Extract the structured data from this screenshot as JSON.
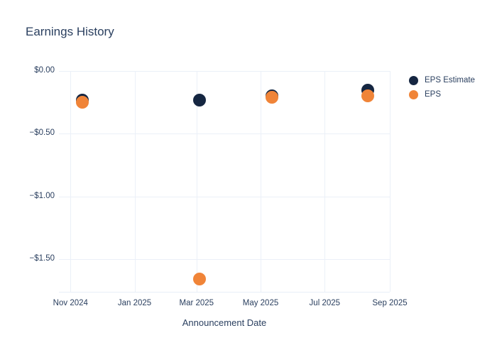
{
  "chart": {
    "title": "Earnings History",
    "xlabel": "Announcement Date"
  },
  "colors": {
    "background": "#ffffff",
    "text": "#2a3f5f",
    "gridline": "#ebf0f8",
    "eps_estimate": "#152641",
    "eps": "#f08438"
  },
  "chart_data": {
    "type": "scatter",
    "title": "Earnings History",
    "xlabel": "Announcement Date",
    "ylabel": "",
    "grid": true,
    "legend_position": "top-right",
    "x_tick_labels": [
      "Nov 2024",
      "Jan 2025",
      "Mar 2025",
      "May 2025",
      "Jul 2025",
      "Sep 2025"
    ],
    "x_tick_dates": [
      "2024-11-01",
      "2025-01-01",
      "2025-03-01",
      "2025-05-01",
      "2025-07-01",
      "2025-09-01"
    ],
    "y_tick_labels": [
      "$0.00",
      "−$0.50",
      "−$1.00",
      "−$1.50"
    ],
    "y_tick_values": [
      0,
      -0.5,
      -1.0,
      -1.5
    ],
    "x_range": [
      "2024-10-21",
      "2025-09-01"
    ],
    "y_range": [
      -1.76,
      0
    ],
    "x": [
      "2024-11-12",
      "2025-03-04",
      "2025-05-12",
      "2025-08-11"
    ],
    "x_note": "approximate dates read from marker positions: mid-Nov 2024, early Mar 2025, mid-May 2025, mid-Aug 2025",
    "series": [
      {
        "name": "EPS Estimate",
        "color": "#152641",
        "values": [
          -0.23,
          -0.23,
          -0.2,
          -0.15
        ]
      },
      {
        "name": "EPS",
        "color": "#f08438",
        "values": [
          -0.25,
          -1.66,
          -0.21,
          -0.2
        ]
      }
    ]
  }
}
